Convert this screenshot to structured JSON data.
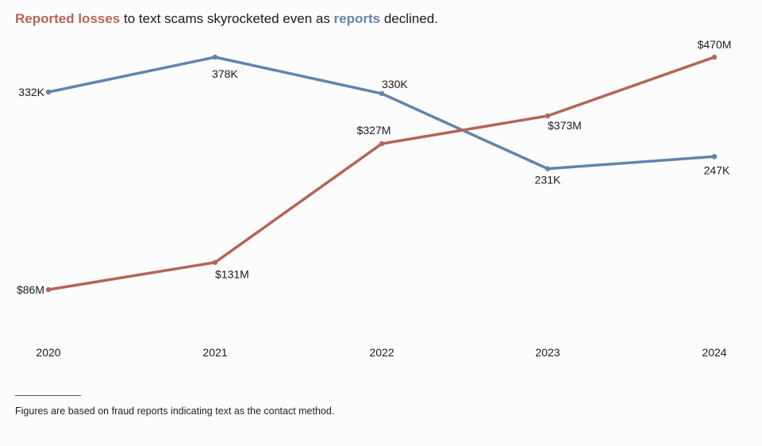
{
  "title": {
    "part1": "Reported losses",
    "part2": " to text scams skyrocketed even as ",
    "part3": "reports",
    "part4": " declined."
  },
  "colors": {
    "losses": "#b5645a",
    "reports": "#6284ad"
  },
  "chart_data": {
    "type": "line",
    "x": [
      "2020",
      "2021",
      "2022",
      "2023",
      "2024"
    ],
    "grid": false,
    "legend": "none (series named by coloured words in title)",
    "series": [
      {
        "name": "reports",
        "unit": "thousands",
        "values": [
          332,
          378,
          330,
          231,
          247
        ],
        "labels": [
          "332K",
          "378K",
          "330K",
          "231K",
          "247K"
        ],
        "color": "#6284ad"
      },
      {
        "name": "Reported losses",
        "unit": "millions USD",
        "values": [
          86,
          131,
          327,
          373,
          470
        ],
        "labels": [
          "$86M",
          "$131M",
          "$327M",
          "$373M",
          "$470M"
        ],
        "color": "#b5645a"
      }
    ]
  },
  "footnote": "Figures are based on fraud reports indicating text as the contact method."
}
